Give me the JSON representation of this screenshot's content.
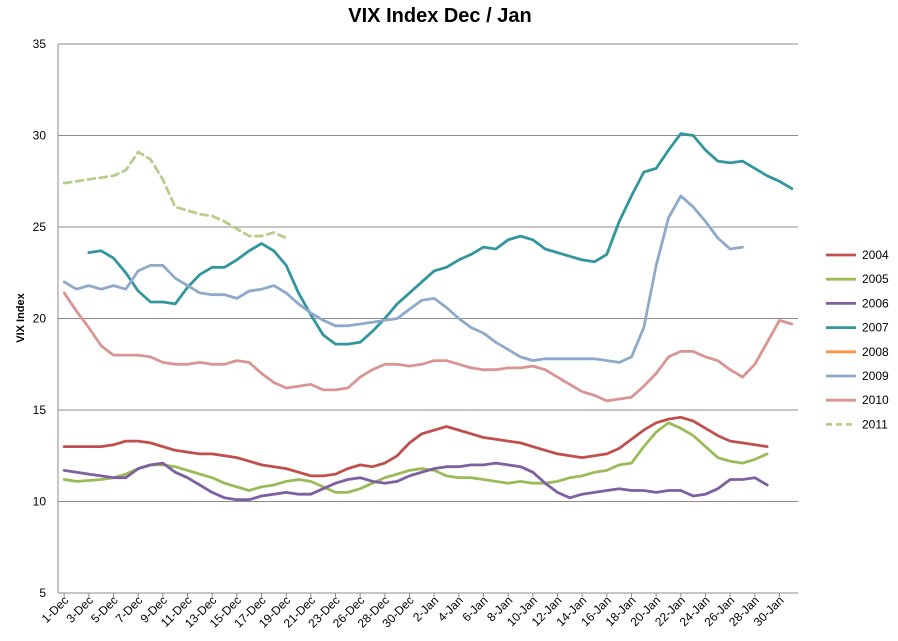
{
  "chart_data": {
    "type": "line",
    "title": "VIX Index Dec / Jan",
    "xlabel": "",
    "ylabel": "VIX Index",
    "ylim": [
      5,
      35
    ],
    "yticks": [
      5,
      10,
      15,
      20,
      25,
      30,
      35
    ],
    "grid": true,
    "legend_position": "right",
    "x_tick_labels": [
      "1-Dec",
      "3-Dec",
      "5-Dec",
      "7-Dec",
      "9-Dec",
      "11-Dec",
      "13-Dec",
      "15-Dec",
      "17-Dec",
      "19-Dec",
      "21-Dec",
      "23-Dec",
      "26-Dec",
      "28-Dec",
      "30-Dec",
      "2-Jan",
      "4-Jan",
      "6-Jan",
      "8-Jan",
      "10-Jan",
      "12-Jan",
      "14-Jan",
      "16-Jan",
      "18-Jan",
      "20-Jan",
      "22-Jan",
      "24-Jan",
      "26-Jan",
      "28-Jan",
      "30-Jan"
    ],
    "series": [
      {
        "name": "2004",
        "color": "#C0504D",
        "dashed": false,
        "values": [
          13.0,
          13.0,
          13.0,
          13.0,
          13.1,
          13.3,
          13.3,
          13.2,
          13.0,
          12.8,
          12.7,
          12.6,
          12.6,
          12.5,
          12.4,
          12.2,
          12.0,
          11.9,
          11.8,
          11.6,
          11.4,
          11.4,
          11.5,
          11.8,
          12.0,
          11.9,
          12.1,
          12.5,
          13.2,
          13.7,
          13.9,
          14.1,
          13.9,
          13.7,
          13.5,
          13.4,
          13.3,
          13.2,
          13.0,
          12.8,
          12.6,
          12.5,
          12.4,
          12.5,
          12.6,
          12.9,
          13.4,
          13.9,
          14.3,
          14.5,
          14.6,
          14.4,
          14.0,
          13.6,
          13.3,
          13.2,
          13.1,
          13.0
        ]
      },
      {
        "name": "2005",
        "color": "#9BBB59",
        "dashed": false,
        "values": [
          11.2,
          11.1,
          11.15,
          11.2,
          11.3,
          11.5,
          11.8,
          12.0,
          12.0,
          11.9,
          11.7,
          11.5,
          11.3,
          11.0,
          10.8,
          10.6,
          10.8,
          10.9,
          11.1,
          11.2,
          11.1,
          10.8,
          10.5,
          10.5,
          10.7,
          11.0,
          11.3,
          11.5,
          11.7,
          11.8,
          11.7,
          11.4,
          11.3,
          11.3,
          11.2,
          11.1,
          11.0,
          11.1,
          11.0,
          11.0,
          11.1,
          11.3,
          11.4,
          11.6,
          11.7,
          12.0,
          12.1,
          13.0,
          13.8,
          14.3,
          14.0,
          13.6,
          13.0,
          12.4,
          12.2,
          12.1,
          12.3,
          12.6
        ]
      },
      {
        "name": "2006",
        "color": "#7E5FA0",
        "dashed": false,
        "values": [
          11.7,
          11.6,
          11.5,
          11.4,
          11.3,
          11.3,
          11.8,
          12.0,
          12.1,
          11.6,
          11.3,
          10.9,
          10.5,
          10.2,
          10.1,
          10.1,
          10.3,
          10.4,
          10.5,
          10.4,
          10.4,
          10.7,
          11.0,
          11.2,
          11.3,
          11.1,
          11.0,
          11.1,
          11.4,
          11.6,
          11.8,
          11.9,
          11.9,
          12.0,
          12.0,
          12.1,
          12.0,
          11.9,
          11.6,
          11.0,
          10.5,
          10.2,
          10.4,
          10.5,
          10.6,
          10.7,
          10.6,
          10.6,
          10.5,
          10.6,
          10.6,
          10.3,
          10.4,
          10.7,
          11.2,
          11.2,
          11.3,
          10.9
        ]
      },
      {
        "name": "2007",
        "color": "#31969E",
        "dashed": false,
        "values": [
          null,
          null,
          23.6,
          23.7,
          23.3,
          22.5,
          21.5,
          20.9,
          20.9,
          20.8,
          21.7,
          22.4,
          22.8,
          22.8,
          23.2,
          23.7,
          24.1,
          23.7,
          22.9,
          21.4,
          20.2,
          19.1,
          18.6,
          18.6,
          18.7,
          19.3,
          20.0,
          20.8,
          21.4,
          22.0,
          22.6,
          22.8,
          23.2,
          23.5,
          23.9,
          23.8,
          24.3,
          24.5,
          24.3,
          23.8,
          23.6,
          23.4,
          23.2,
          23.1,
          23.5,
          25.3,
          26.7,
          28.0,
          28.2,
          29.2,
          30.1,
          30.0,
          29.2,
          28.6,
          28.5,
          28.6,
          28.2,
          27.8,
          27.5,
          27.1
        ]
      },
      {
        "name": "2008",
        "color": "#F79646",
        "dashed": false,
        "values": []
      },
      {
        "name": "2009",
        "color": "#8EA9CB",
        "dashed": false,
        "values": [
          22.0,
          21.6,
          21.8,
          21.6,
          21.8,
          21.6,
          22.6,
          22.9,
          22.9,
          22.2,
          21.8,
          21.4,
          21.3,
          21.3,
          21.1,
          21.5,
          21.6,
          21.8,
          21.4,
          20.8,
          20.3,
          19.9,
          19.6,
          19.6,
          19.7,
          19.8,
          19.9,
          20.0,
          20.5,
          21.0,
          21.1,
          20.6,
          20.0,
          19.5,
          19.2,
          18.7,
          18.3,
          17.9,
          17.7,
          17.8,
          17.8,
          17.8,
          17.8,
          17.8,
          17.7,
          17.6,
          17.9,
          19.5,
          22.9,
          25.5,
          26.7,
          26.1,
          25.3,
          24.4,
          23.8,
          23.9
        ]
      },
      {
        "name": "2010",
        "color": "#D99593",
        "dashed": false,
        "values": [
          21.4,
          20.4,
          19.5,
          18.5,
          18.0,
          18.0,
          18.0,
          17.9,
          17.6,
          17.5,
          17.5,
          17.6,
          17.5,
          17.5,
          17.7,
          17.6,
          17.0,
          16.5,
          16.2,
          16.3,
          16.4,
          16.1,
          16.1,
          16.2,
          16.8,
          17.2,
          17.5,
          17.5,
          17.4,
          17.5,
          17.7,
          17.7,
          17.5,
          17.3,
          17.2,
          17.2,
          17.3,
          17.3,
          17.4,
          17.2,
          16.8,
          16.4,
          16.0,
          15.8,
          15.5,
          15.6,
          15.7,
          16.3,
          17.0,
          17.9,
          18.2,
          18.2,
          17.9,
          17.7,
          17.2,
          16.8,
          17.5,
          18.7,
          19.9,
          19.7
        ]
      },
      {
        "name": "2011",
        "color": "#B6CD8C",
        "dashed": true,
        "values": [
          27.4,
          27.5,
          27.6,
          27.7,
          27.8,
          28.1,
          29.1,
          28.7,
          27.6,
          26.1,
          25.9,
          25.7,
          25.6,
          25.3,
          24.9,
          24.5,
          24.5,
          24.7,
          24.4
        ]
      }
    ]
  }
}
